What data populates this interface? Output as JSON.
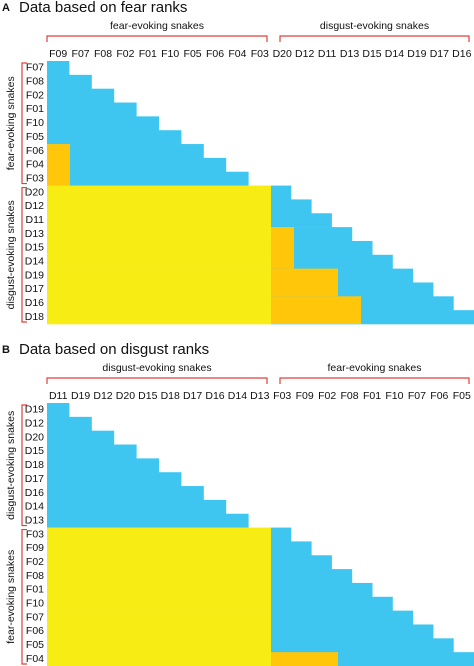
{
  "panels": [
    {
      "label": "A",
      "title": "Data based on fear ranks",
      "column_groups": [
        {
          "label": "fear-evoking snakes"
        },
        {
          "label": "disgust-evoking snakes"
        }
      ],
      "columns": [
        "F09",
        "F07",
        "F08",
        "F02",
        "F01",
        "F10",
        "F05",
        "F06",
        "F04",
        "F03",
        "D20",
        "D12",
        "D11",
        "D13",
        "D15",
        "D14",
        "D19",
        "D17",
        "D16"
      ],
      "row_groups": [
        {
          "label": "fear-evoking snakes"
        },
        {
          "label": "disgust-evoking snakes"
        }
      ],
      "rows": [
        "F07",
        "F08",
        "F02",
        "F01",
        "F10",
        "F05",
        "F06",
        "F04",
        "F03",
        "D20",
        "D12",
        "D11",
        "D13",
        "D15",
        "D14",
        "D19",
        "D17",
        "D16",
        "D18"
      ]
    },
    {
      "label": "B",
      "title": "Data based on disgust ranks",
      "column_groups": [
        {
          "label": "disgust-evoking snakes"
        },
        {
          "label": "fear-evoking snakes"
        }
      ],
      "columns": [
        "D11",
        "D19",
        "D12",
        "D20",
        "D15",
        "D18",
        "D17",
        "D16",
        "D14",
        "D13",
        "F03",
        "F09",
        "F02",
        "F08",
        "F01",
        "F10",
        "F07",
        "F06",
        "F05"
      ],
      "row_groups": [
        {
          "label": "disgust-evoking snakes"
        },
        {
          "label": "fear-evoking snakes"
        }
      ],
      "rows": [
        "D19",
        "D12",
        "D20",
        "D15",
        "D18",
        "D17",
        "D16",
        "D14",
        "D13",
        "F03",
        "F09",
        "F02",
        "F08",
        "F01",
        "F10",
        "F07",
        "F06",
        "F05",
        "F04"
      ]
    }
  ]
}
